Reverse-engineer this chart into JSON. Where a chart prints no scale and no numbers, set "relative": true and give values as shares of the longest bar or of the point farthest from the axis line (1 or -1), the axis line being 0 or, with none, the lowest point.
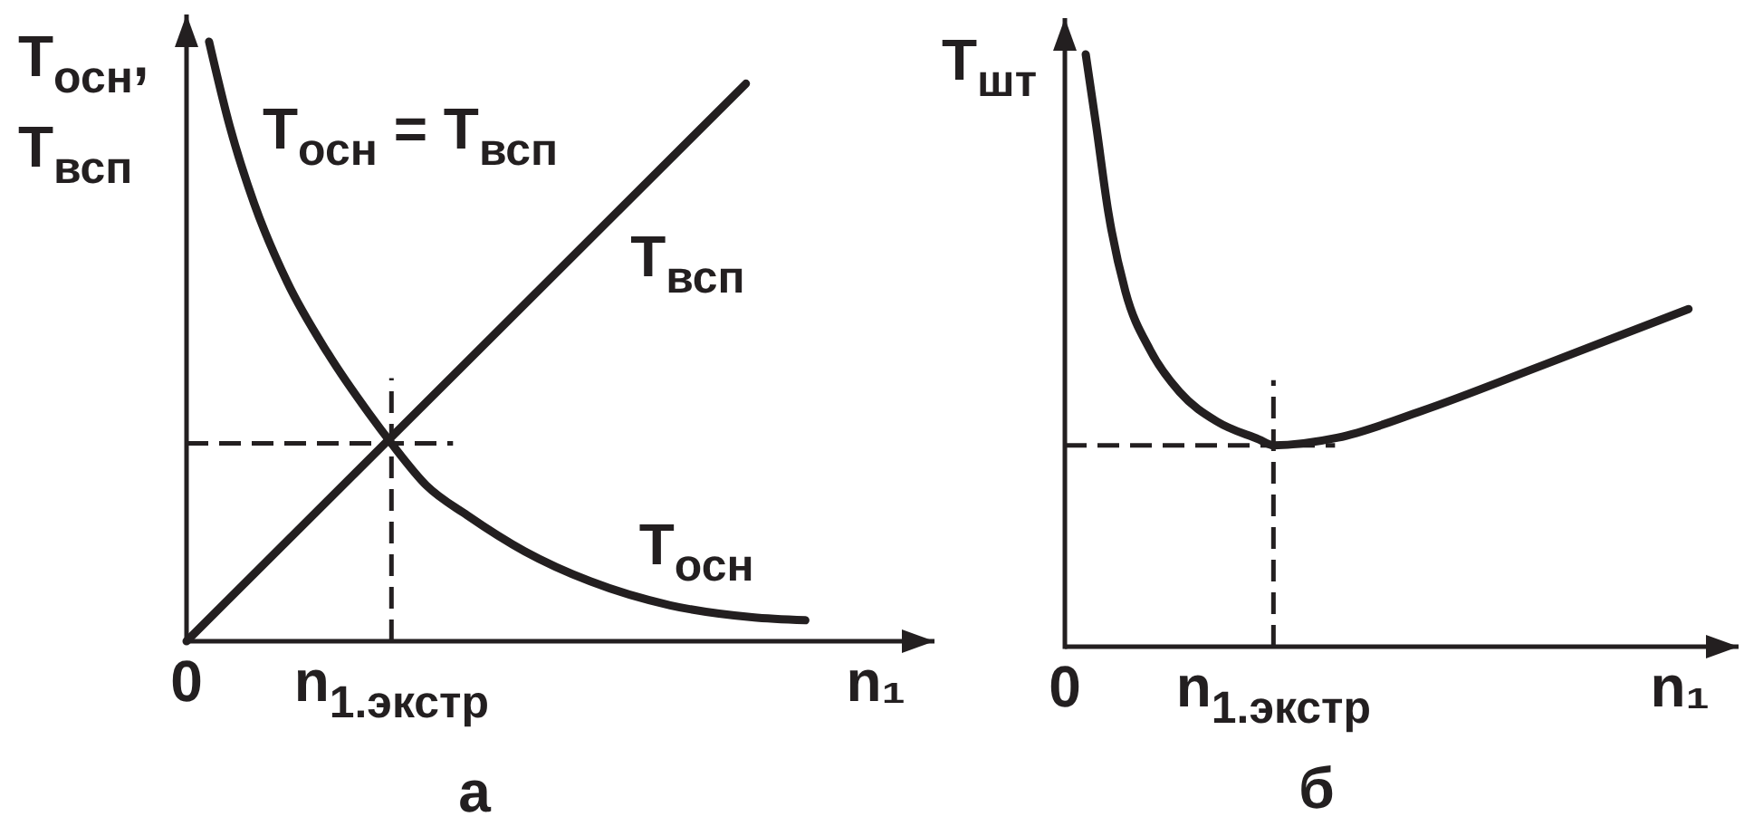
{
  "chart_data": [
    {
      "type": "line",
      "title": "а",
      "xlabel": "n₁",
      "ylabel": "T$_{осн}$, T$_{всп}$",
      "annotations": [
        "T$_{осн}$ = T$_{всп}$"
      ],
      "relative": true,
      "xlim": [
        0,
        3.65
      ],
      "xticks": [
        0,
        {
          "value": 1,
          "label": "n$_{1.экстр}$"
        }
      ],
      "tick_labels": "x",
      "series": [
        {
          "name": "T$_{всп}$",
          "color": "#231f20",
          "x": [
            0,
            2.73
          ],
          "values": [
            0,
            0.93
          ]
        },
        {
          "name": "T$_{осн}$",
          "color": "#231f20",
          "x": [
            0.11,
            0.21,
            0.33,
            0.49,
            0.69,
            0.89,
            1,
            1.17,
            1.37,
            1.65,
            1.97,
            2.36,
            2.76,
            3.02
          ],
          "values": [
            1,
            0.86,
            0.73,
            0.6,
            0.48,
            0.38,
            0.33,
            0.26,
            0.21,
            0.15,
            0.1,
            0.06,
            0.04,
            0.035
          ]
        }
      ],
      "ref_lines": [
        {
          "axis": "x",
          "value": 1,
          "color": "#231f20",
          "line_style": "dashed"
        },
        {
          "axis": "y",
          "value": 0.33,
          "color": "#231f20",
          "line_style": "dashed"
        }
      ]
    },
    {
      "type": "line",
      "title": "б",
      "xlabel": "n₁",
      "ylabel": "T$_{шт}$",
      "relative": true,
      "xlim": [
        0,
        3.23
      ],
      "xticks": [
        0,
        {
          "value": 1,
          "label": "n$_{1.экстр}$"
        }
      ],
      "tick_labels": "x",
      "series": [
        {
          "color": "#231f20",
          "x": [
            0.1,
            0.15,
            0.21,
            0.29,
            0.41,
            0.55,
            0.73,
            0.93,
            1,
            1.31,
            1.71,
            2.29,
            2.99
          ],
          "values": [
            1,
            0.88,
            0.73,
            0.6,
            0.5,
            0.43,
            0.38,
            0.35,
            0.34,
            0.353,
            0.398,
            0.475,
            0.57
          ]
        }
      ],
      "ref_lines": [
        {
          "axis": "x",
          "value": 1,
          "color": "#231f20",
          "line_style": "dashed"
        },
        {
          "axis": "y",
          "value": 0.34,
          "color": "#231f20",
          "line_style": "dashed"
        }
      ]
    }
  ]
}
